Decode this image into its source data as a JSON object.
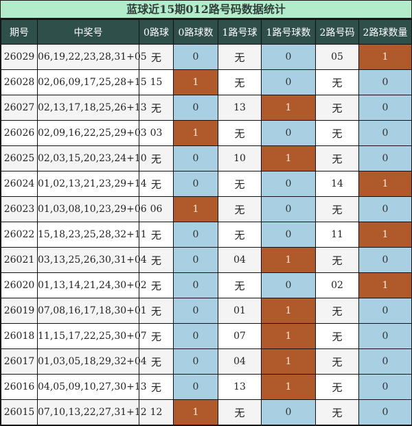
{
  "title": "蓝球近15期012路号码数据统计",
  "colors": {
    "title_bg": "#b3ecca",
    "header_bg": "#2f4f4a",
    "zero_bg": "#a8cfe2",
    "one_bg": "#b05a2c"
  },
  "headers": [
    "期号",
    "中奖号",
    "0路球",
    "0路球数",
    "1路号球",
    "1路号球数",
    "2路号码",
    "2路球数量"
  ],
  "rows": [
    [
      "26029",
      "06,19,22,23,28,31+05",
      "无",
      "0",
      "无",
      "0",
      "05",
      "1"
    ],
    [
      "26028",
      "02,06,09,17,25,28+15",
      "15",
      "1",
      "无",
      "0",
      "无",
      "0"
    ],
    [
      "26027",
      "02,13,17,18,25,26+13",
      "无",
      "0",
      "13",
      "1",
      "无",
      "0"
    ],
    [
      "26026",
      "02,09,16,22,25,29+03",
      "03",
      "1",
      "无",
      "0",
      "无",
      "0"
    ],
    [
      "26025",
      "02,03,15,20,23,24+10",
      "无",
      "0",
      "10",
      "1",
      "无",
      "0"
    ],
    [
      "26024",
      "01,02,13,21,23,29+14",
      "无",
      "0",
      "无",
      "0",
      "14",
      "1"
    ],
    [
      "26023",
      "01,03,08,10,23,29+06",
      "06",
      "1",
      "无",
      "0",
      "无",
      "0"
    ],
    [
      "26022",
      "15,18,23,25,28,32+11",
      "无",
      "0",
      "无",
      "0",
      "11",
      "1"
    ],
    [
      "26021",
      "03,13,25,26,30,31+04",
      "无",
      "0",
      "04",
      "1",
      "无",
      "0"
    ],
    [
      "26020",
      "01,13,14,21,24,30+02",
      "无",
      "0",
      "无",
      "0",
      "02",
      "1"
    ],
    [
      "26019",
      "07,08,16,17,18,30+01",
      "无",
      "0",
      "01",
      "1",
      "无",
      "0"
    ],
    [
      "26018",
      "11,15,17,22,25,30+07",
      "无",
      "0",
      "07",
      "1",
      "无",
      "0"
    ],
    [
      "26017",
      "01,03,05,18,29,32+04",
      "无",
      "0",
      "04",
      "1",
      "无",
      "0"
    ],
    [
      "26016",
      "04,05,09,10,27,30+13",
      "无",
      "0",
      "13",
      "1",
      "无",
      "0"
    ],
    [
      "26015",
      "07,10,13,22,27,31+12",
      "12",
      "1",
      "无",
      "0",
      "无",
      "0"
    ]
  ]
}
